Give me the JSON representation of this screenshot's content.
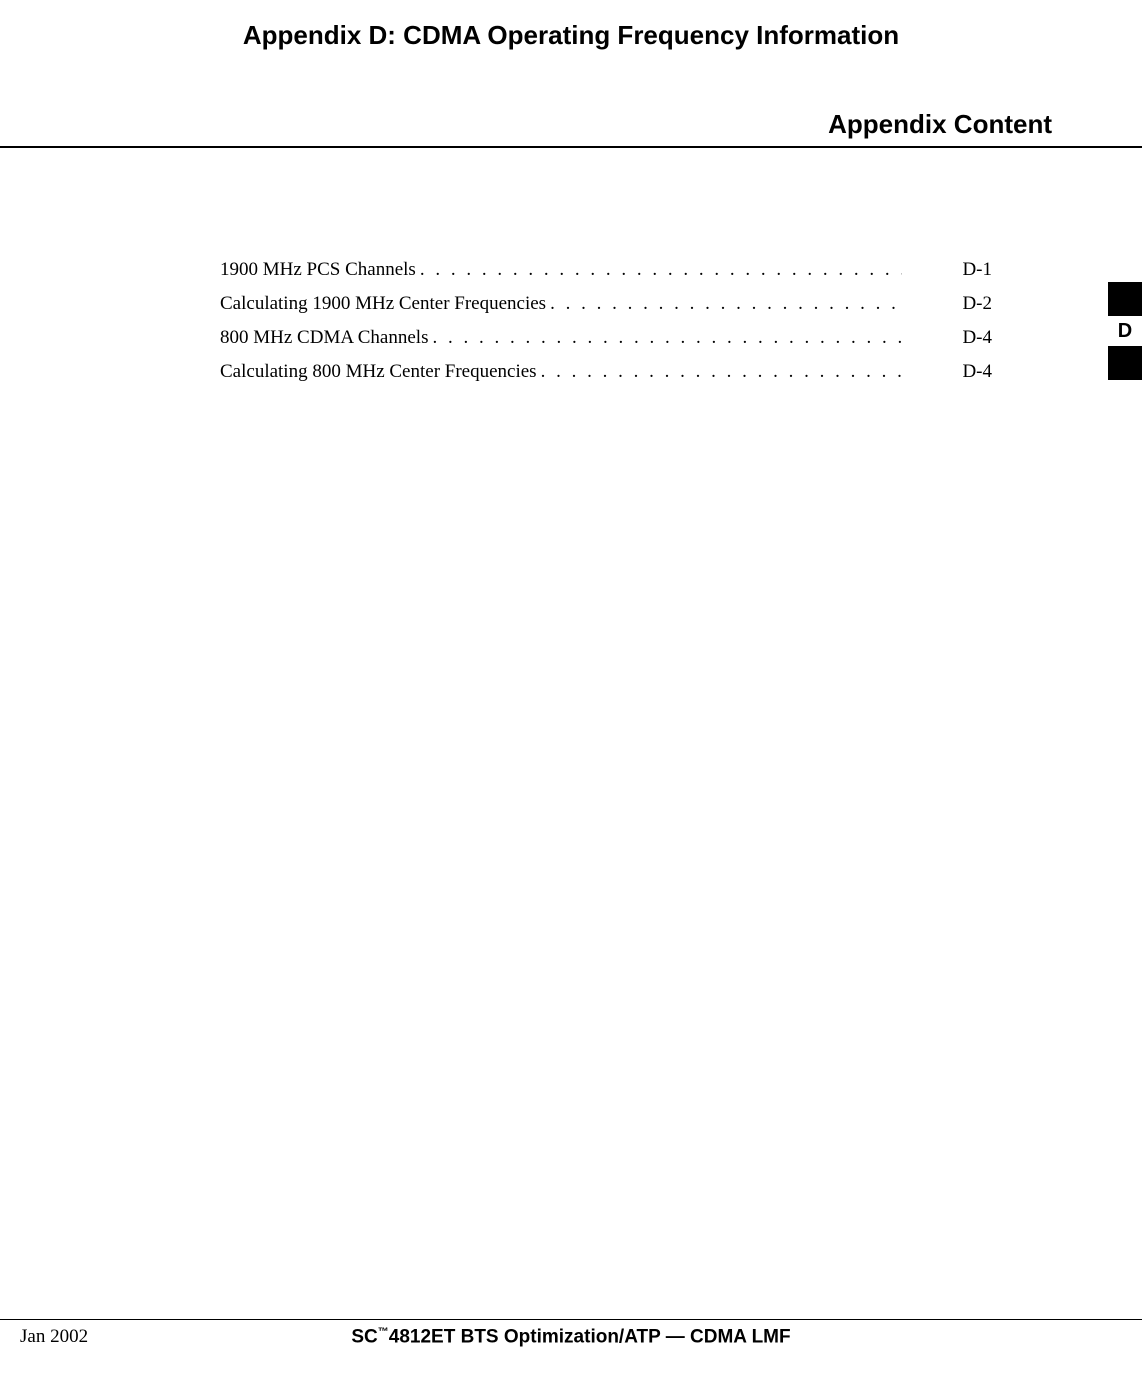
{
  "title": "Appendix D: CDMA Operating Frequency Information",
  "section": "Appendix Content",
  "toc": [
    {
      "label": "1900 MHz PCS Channels",
      "page": "D-1"
    },
    {
      "label": "Calculating 1900 MHz Center Frequencies",
      "page": "D-2"
    },
    {
      "label": "800 MHz CDMA Channels",
      "page": "D-4"
    },
    {
      "label": "Calculating 800 MHz Center Frequencies",
      "page": "D-4"
    }
  ],
  "tab": {
    "letter": "D"
  },
  "footer": {
    "date": "Jan 2002",
    "prefix": "SC",
    "tm": "™",
    "suffix": "4812ET BTS Optimization/ATP — CDMA LMF"
  },
  "dots": ". . . . . . . . . . . . . . . . . . . . . . . . . . . . . . . . . . . . . . . . . . . . . . . . . . . . . . . . . . . . . . . . . . . . . . . . . . . ."
}
